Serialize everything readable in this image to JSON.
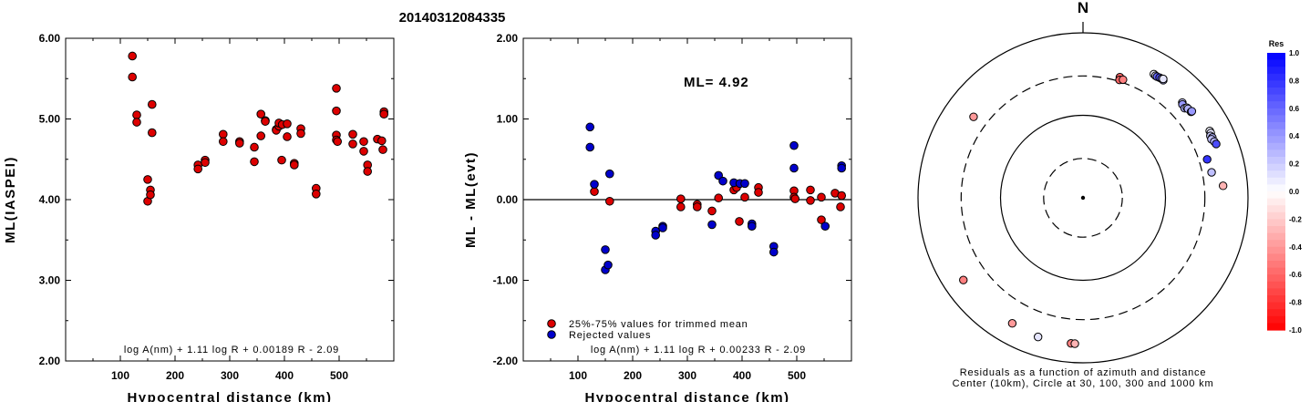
{
  "title": "20140312084335",
  "chart_data": [
    {
      "type": "scatter",
      "ylabel": "ML(IASPEI)",
      "xlabel": "Hypocentral distance (km)",
      "xlim": [
        0,
        600
      ],
      "ylim": [
        2.0,
        6.0
      ],
      "xticks": [
        "100",
        "200",
        "300",
        "400",
        "500"
      ],
      "xtick_values": [
        100,
        200,
        300,
        400,
        500
      ],
      "yticks": [
        "2.00",
        "3.00",
        "4.00",
        "5.00",
        "6.00"
      ],
      "ytick_values": [
        2,
        3,
        4,
        5,
        6
      ],
      "formula": "log A(nm) + 1.11 log R + 0.00189 R - 2.09",
      "points": [
        [
          122,
          5.78
        ],
        [
          122,
          5.52
        ],
        [
          130,
          5.05
        ],
        [
          130,
          4.96
        ],
        [
          150,
          4.25
        ],
        [
          150,
          3.98
        ],
        [
          155,
          4.12
        ],
        [
          155,
          4.06
        ],
        [
          158,
          5.18
        ],
        [
          158,
          4.83
        ],
        [
          242,
          4.43
        ],
        [
          242,
          4.38
        ],
        [
          255,
          4.49
        ],
        [
          255,
          4.46
        ],
        [
          288,
          4.81
        ],
        [
          288,
          4.72
        ],
        [
          318,
          4.72
        ],
        [
          318,
          4.7
        ],
        [
          345,
          4.65
        ],
        [
          345,
          4.47
        ],
        [
          357,
          5.06
        ],
        [
          357,
          4.79
        ],
        [
          365,
          4.98
        ],
        [
          365,
          4.97
        ],
        [
          385,
          4.87
        ],
        [
          385,
          4.86
        ],
        [
          390,
          4.91
        ],
        [
          390,
          4.95
        ],
        [
          395,
          4.49
        ],
        [
          396,
          4.93
        ],
        [
          405,
          4.94
        ],
        [
          405,
          4.78
        ],
        [
          418,
          4.45
        ],
        [
          418,
          4.43
        ],
        [
          430,
          4.88
        ],
        [
          430,
          4.82
        ],
        [
          458,
          4.14
        ],
        [
          458,
          4.07
        ],
        [
          495,
          5.38
        ],
        [
          495,
          5.1
        ],
        [
          495,
          4.8
        ],
        [
          495,
          4.74
        ],
        [
          497,
          4.72
        ],
        [
          525,
          4.81
        ],
        [
          525,
          4.69
        ],
        [
          545,
          4.72
        ],
        [
          545,
          4.6
        ],
        [
          552,
          4.43
        ],
        [
          552,
          4.35
        ],
        [
          570,
          4.75
        ],
        [
          578,
          4.73
        ],
        [
          580,
          4.62
        ],
        [
          582,
          5.09
        ],
        [
          582,
          5.06
        ]
      ]
    },
    {
      "type": "scatter",
      "ylabel": "ML - ML(evt)",
      "xlabel": "Hypocentral distance (km)",
      "xlim": [
        0,
        600
      ],
      "ylim": [
        -2.0,
        2.0
      ],
      "xticks": [
        "100",
        "200",
        "300",
        "400",
        "500"
      ],
      "xtick_values": [
        100,
        200,
        300,
        400,
        500
      ],
      "yticks": [
        "-2.00",
        "-1.00",
        "0.00",
        "1.00",
        "2.00"
      ],
      "ytick_values": [
        -2,
        -1,
        0,
        1,
        2
      ],
      "ml_label": "ML= 4.92",
      "legend": [
        "25%-75% values for trimmed mean",
        "Rejected values"
      ],
      "formula": "log A(nm) + 1.11 log R + 0.00233 R - 2.09",
      "zero_line": 0,
      "series": [
        {
          "name": "25%-75% values for trimmed mean",
          "color": "#dd0000",
          "points": [
            [
              130,
              0.1
            ],
            [
              158,
              -0.02
            ],
            [
              288,
              0.01
            ],
            [
              288,
              -0.09
            ],
            [
              318,
              -0.06
            ],
            [
              318,
              -0.09
            ],
            [
              345,
              -0.14
            ],
            [
              357,
              0.02
            ],
            [
              385,
              0.12
            ],
            [
              390,
              0.15
            ],
            [
              395,
              -0.27
            ],
            [
              405,
              0.03
            ],
            [
              430,
              0.15
            ],
            [
              430,
              0.09
            ],
            [
              495,
              0.11
            ],
            [
              495,
              0.03
            ],
            [
              497,
              0.01
            ],
            [
              525,
              0.12
            ],
            [
              525,
              -0.01
            ],
            [
              545,
              0.03
            ],
            [
              545,
              -0.25
            ],
            [
              570,
              0.08
            ],
            [
              580,
              -0.09
            ],
            [
              582,
              0.05
            ]
          ]
        },
        {
          "name": "Rejected values",
          "color": "#0000cc",
          "points": [
            [
              122,
              0.9
            ],
            [
              122,
              0.65
            ],
            [
              130,
              0.19
            ],
            [
              150,
              -0.62
            ],
            [
              150,
              -0.87
            ],
            [
              155,
              -0.81
            ],
            [
              158,
              0.32
            ],
            [
              242,
              -0.39
            ],
            [
              242,
              -0.44
            ],
            [
              255,
              -0.33
            ],
            [
              255,
              -0.35
            ],
            [
              345,
              -0.31
            ],
            [
              357,
              0.3
            ],
            [
              365,
              0.23
            ],
            [
              385,
              0.21
            ],
            [
              396,
              0.2
            ],
            [
              405,
              0.2
            ],
            [
              418,
              -0.3
            ],
            [
              418,
              -0.33
            ],
            [
              458,
              -0.58
            ],
            [
              458,
              -0.65
            ],
            [
              495,
              0.67
            ],
            [
              495,
              0.39
            ],
            [
              552,
              -0.33
            ],
            [
              582,
              0.42
            ],
            [
              582,
              0.39
            ]
          ]
        }
      ]
    },
    {
      "type": "scatter",
      "subtype": "polar",
      "north_label": "N",
      "caption_line1": "Residuals as a function of azimuth and distance",
      "caption_line2": "Center (10km), Circle at 30, 100, 300 and 1000 km",
      "colorbar_title": "Res",
      "colorbar_ticks": [
        "1.0",
        "0.8",
        "0.6",
        "0.4",
        "0.2",
        "0.0",
        "-0.2",
        "-0.4",
        "-0.6",
        "-0.8",
        "-1.0"
      ],
      "colorbar_tick_values": [
        1.0,
        0.8,
        0.6,
        0.4,
        0.2,
        0.0,
        -0.2,
        -0.4,
        -0.6,
        -0.8,
        -1.0
      ],
      "stations_azimuth_deg_distance_km_residual": [
        [
          29.8,
          535,
          0.05
        ],
        [
          30.7,
          527,
          0.1
        ],
        [
          31.4,
          526,
          0.6
        ],
        [
          32.5,
          534,
          0.7
        ],
        [
          33.4,
          537,
          0.5
        ],
        [
          34.3,
          532,
          0.3
        ],
        [
          34.0,
          547,
          0.1
        ],
        [
          46.2,
          465,
          0.2
        ],
        [
          46.8,
          450,
          0.4
        ],
        [
          48.6,
          439,
          0.3
        ],
        [
          49.1,
          464,
          0.05
        ],
        [
          49.7,
          466,
          0.3
        ],
        [
          51.5,
          472,
          0.2
        ],
        [
          51.5,
          485,
          0.4
        ],
        [
          62.2,
          545,
          0.05
        ],
        [
          63.1,
          545,
          0.1
        ],
        [
          64.1,
          521,
          0.2
        ],
        [
          65.0,
          536,
          0.3
        ],
        [
          65.5,
          514,
          0.25
        ],
        [
          66.8,
          538,
          0.3
        ],
        [
          68.0,
          551,
          0.7
        ],
        [
          72.8,
          376,
          0.8
        ],
        [
          78.8,
          388,
          0.25
        ],
        [
          85.1,
          506,
          -0.3
        ],
        [
          17.0,
          338,
          -0.6
        ],
        [
          17.2,
          313,
          -0.6
        ],
        [
          18.7,
          325,
          -0.5
        ],
        [
          -53.5,
          447,
          -0.4
        ],
        [
          -124.5,
          575,
          -0.5
        ],
        [
          -150.6,
          558,
          -0.4
        ],
        [
          -162.1,
          592,
          0.1
        ],
        [
          -175.3,
          590,
          -0.5
        ],
        [
          -176.8,
          590,
          -0.3
        ]
      ]
    }
  ]
}
